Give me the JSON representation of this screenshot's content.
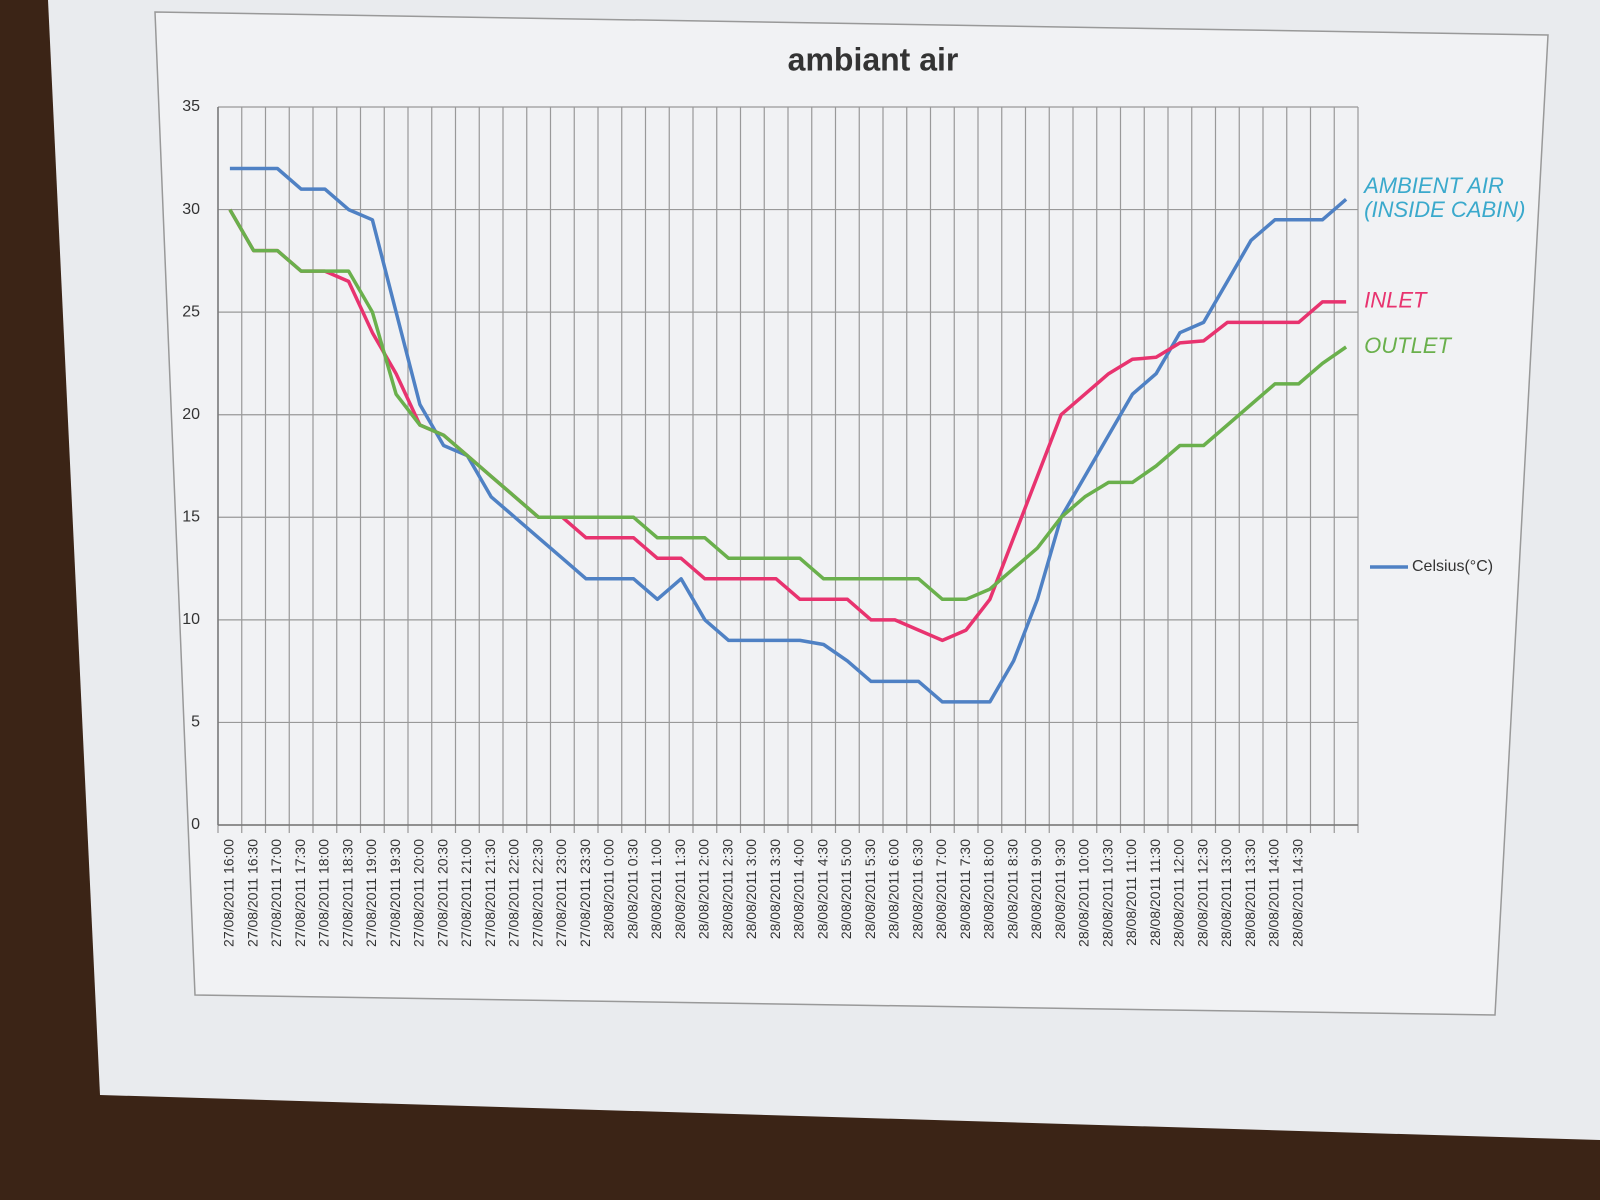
{
  "chart_data": {
    "type": "line",
    "title": "ambiant air",
    "categories": [
      "27/08/2011 16:00",
      "27/08/2011 16:30",
      "27/08/2011 17:00",
      "27/08/2011 17:30",
      "27/08/2011 18:00",
      "27/08/2011 18:30",
      "27/08/2011 19:00",
      "27/08/2011 19:30",
      "27/08/2011 20:00",
      "27/08/2011 20:30",
      "27/08/2011 21:00",
      "27/08/2011 21:30",
      "27/08/2011 22:00",
      "27/08/2011 22:30",
      "27/08/2011 23:00",
      "27/08/2011 23:30",
      "28/08/2011 0:00",
      "28/08/2011 0:30",
      "28/08/2011 1:00",
      "28/08/2011 1:30",
      "28/08/2011 2:00",
      "28/08/2011 2:30",
      "28/08/2011 3:00",
      "28/08/2011 3:30",
      "28/08/2011 4:00",
      "28/08/2011 4:30",
      "28/08/2011 5:00",
      "28/08/2011 5:30",
      "28/08/2011 6:00",
      "28/08/2011 6:30",
      "28/08/2011 7:00",
      "28/08/2011 7:30",
      "28/08/2011 8:00",
      "28/08/2011 8:30",
      "28/08/2011 9:00",
      "28/08/2011 9:30",
      "28/08/2011 10:00",
      "28/08/2011 10:30",
      "28/08/2011 11:00",
      "28/08/2011 11:30",
      "28/08/2011 12:00",
      "28/08/2011 12:30",
      "28/08/2011 13:00",
      "28/08/2011 13:30",
      "28/08/2011 14:00",
      "28/08/2011 14:30",
      null,
      null
    ],
    "series": [
      {
        "name": "Celsius(°C)",
        "color": "#4f81c4",
        "in_legend": true,
        "end_label": [
          "AMBIENT AIR",
          "(INSIDE CABIN)"
        ],
        "label_color": "#3aa9cc",
        "values": [
          32,
          32,
          32,
          31,
          31,
          30,
          29.5,
          25,
          20.5,
          18.5,
          18,
          16,
          15,
          14,
          13,
          12,
          12,
          12,
          11,
          12,
          10,
          9,
          9,
          9,
          9,
          8.8,
          8,
          7,
          7,
          7,
          6,
          6,
          6,
          8,
          11,
          15,
          17,
          19,
          21,
          22,
          24,
          24.5,
          26.5,
          28.5,
          29.5,
          29.5,
          29.5,
          30.5
        ]
      },
      {
        "name": "INLET",
        "color": "#e8336f",
        "in_legend": false,
        "end_label": [
          "INLET"
        ],
        "label_color": "#e8336f",
        "values": [
          30,
          28,
          28,
          27,
          27,
          26.5,
          24,
          22,
          19.5,
          19,
          18,
          17,
          16,
          15,
          15,
          14,
          14,
          14,
          13,
          13,
          12,
          12,
          12,
          12,
          11,
          11,
          11,
          10,
          10,
          9.5,
          9,
          9.5,
          11,
          14,
          17,
          20,
          21,
          22,
          22.7,
          22.8,
          23.5,
          23.6,
          24.5,
          24.5,
          24.5,
          24.5,
          25.5,
          25.5
        ]
      },
      {
        "name": "OUTLET",
        "color": "#6ab04c",
        "in_legend": false,
        "end_label": [
          "OUTLET"
        ],
        "label_color": "#6ab04c",
        "values": [
          30,
          28,
          28,
          27,
          27,
          27,
          25,
          21,
          19.5,
          19,
          18,
          17,
          16,
          15,
          15,
          15,
          15,
          15,
          14,
          14,
          14,
          13,
          13,
          13,
          13,
          12,
          12,
          12,
          12,
          12,
          11,
          11,
          11.5,
          12.5,
          13.5,
          15,
          16,
          16.7,
          16.7,
          17.5,
          18.5,
          18.5,
          19.5,
          20.5,
          21.5,
          21.5,
          22.5,
          23.3
        ]
      }
    ],
    "ylim": [
      0,
      35
    ],
    "yticks": [
      0,
      5,
      10,
      15,
      20,
      25,
      30,
      35
    ],
    "grid": true,
    "legend": "right"
  }
}
